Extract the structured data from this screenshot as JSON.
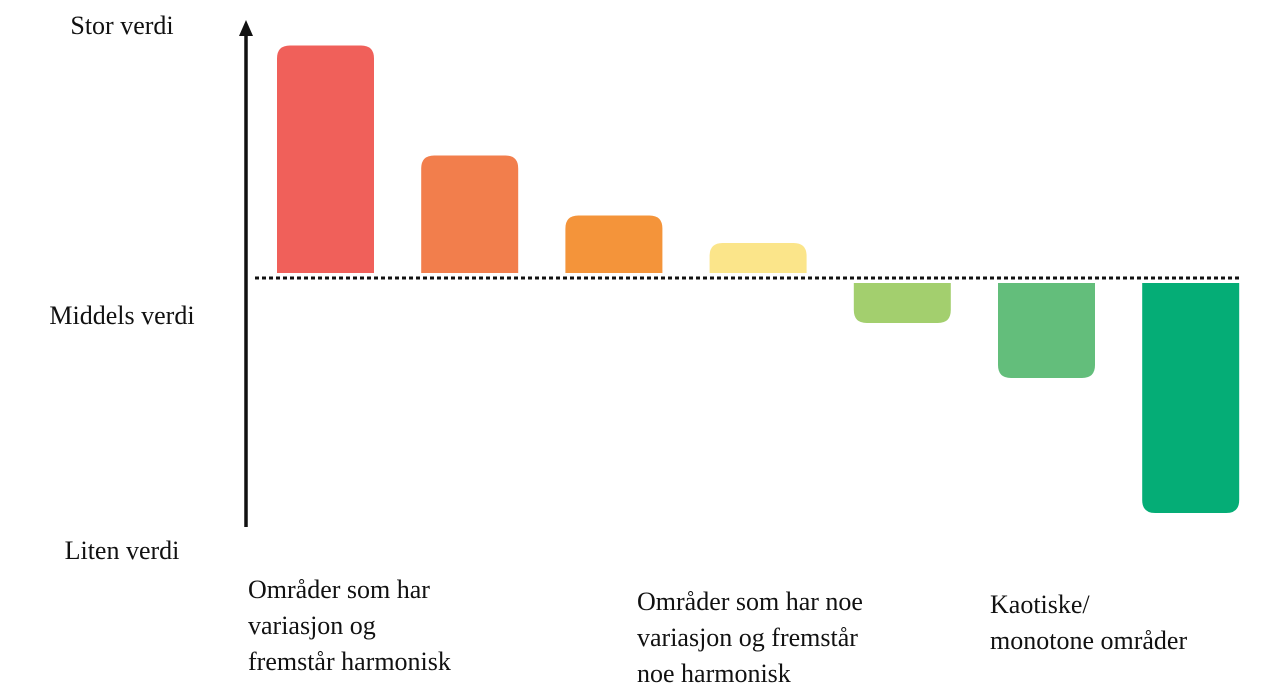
{
  "chart_data": {
    "type": "bar",
    "categories": [
      null,
      null,
      null,
      null,
      null,
      null,
      null
    ],
    "values": [
      9.3,
      4.9,
      2.5,
      1.4,
      -1.8,
      -4.0,
      -9.4
    ],
    "colors": [
      "#f0605a",
      "#f27e4c",
      "#f4943a",
      "#fbe58a",
      "#a3cf6e",
      "#63be7b",
      "#05ad76"
    ],
    "ylim": [
      -10,
      10
    ],
    "yticks": [
      {
        "value": 10,
        "label": "Stor verdi"
      },
      {
        "value": 0,
        "label": "Middels verdi"
      },
      {
        "value": -10,
        "label": "Liten verdi"
      }
    ],
    "groups": [
      [
        "Områder som har",
        "variasjon og",
        "fremstår harmonisk"
      ],
      [
        "Områder som har noe",
        "variasjon og fremstår",
        "noe harmonisk"
      ],
      [
        "Kaotiske/",
        "monotone områder"
      ]
    ]
  }
}
